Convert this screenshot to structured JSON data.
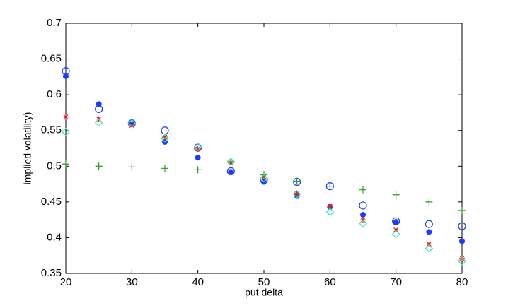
{
  "chart_data": {
    "type": "scatter",
    "xlabel": "put delta",
    "ylabel": "implied volatility)",
    "x": [
      20,
      25,
      30,
      35,
      40,
      45,
      50,
      55,
      60,
      65,
      70,
      75,
      80
    ],
    "series": [
      {
        "color": "#1a3cf5",
        "marker": "filled-circle",
        "values": [
          0.626,
          0.587,
          0.559,
          0.534,
          0.512,
          0.492,
          0.478,
          0.459,
          0.443,
          0.432,
          0.422,
          0.408,
          0.395
        ]
      },
      {
        "color": "#1a3cf5",
        "marker": "circle",
        "values": [
          0.633,
          0.58,
          0.56,
          0.55,
          0.526,
          0.493,
          0.481,
          0.478,
          0.472,
          0.445,
          0.423,
          0.419,
          0.416
        ]
      },
      {
        "color": "#e8201c",
        "marker": "star",
        "values": [
          0.569,
          0.566,
          0.557,
          0.541,
          0.524,
          0.504,
          0.485,
          0.462,
          0.444,
          0.425,
          0.411,
          0.391,
          0.371
        ]
      },
      {
        "color": "#2a9a1e",
        "marker": "plus",
        "values": [
          0.503,
          0.5,
          0.499,
          0.497,
          0.495,
          0.507,
          0.488,
          0.479,
          0.472,
          0.467,
          0.46,
          0.45,
          0.438
        ]
      },
      {
        "color": "#3de0b0",
        "marker": "diamond",
        "values": [
          0.548,
          0.561,
          0.56,
          0.539,
          0.527,
          0.506,
          0.483,
          0.461,
          0.436,
          0.42,
          0.405,
          0.385,
          0.367
        ]
      }
    ],
    "xlim": [
      20,
      80
    ],
    "xticks": [
      20,
      30,
      40,
      50,
      60,
      70,
      80
    ],
    "ylim": [
      0.35,
      0.7
    ],
    "yticks": [
      0.35,
      0.4,
      0.45,
      0.5,
      0.55,
      0.6,
      0.65,
      0.7
    ]
  }
}
